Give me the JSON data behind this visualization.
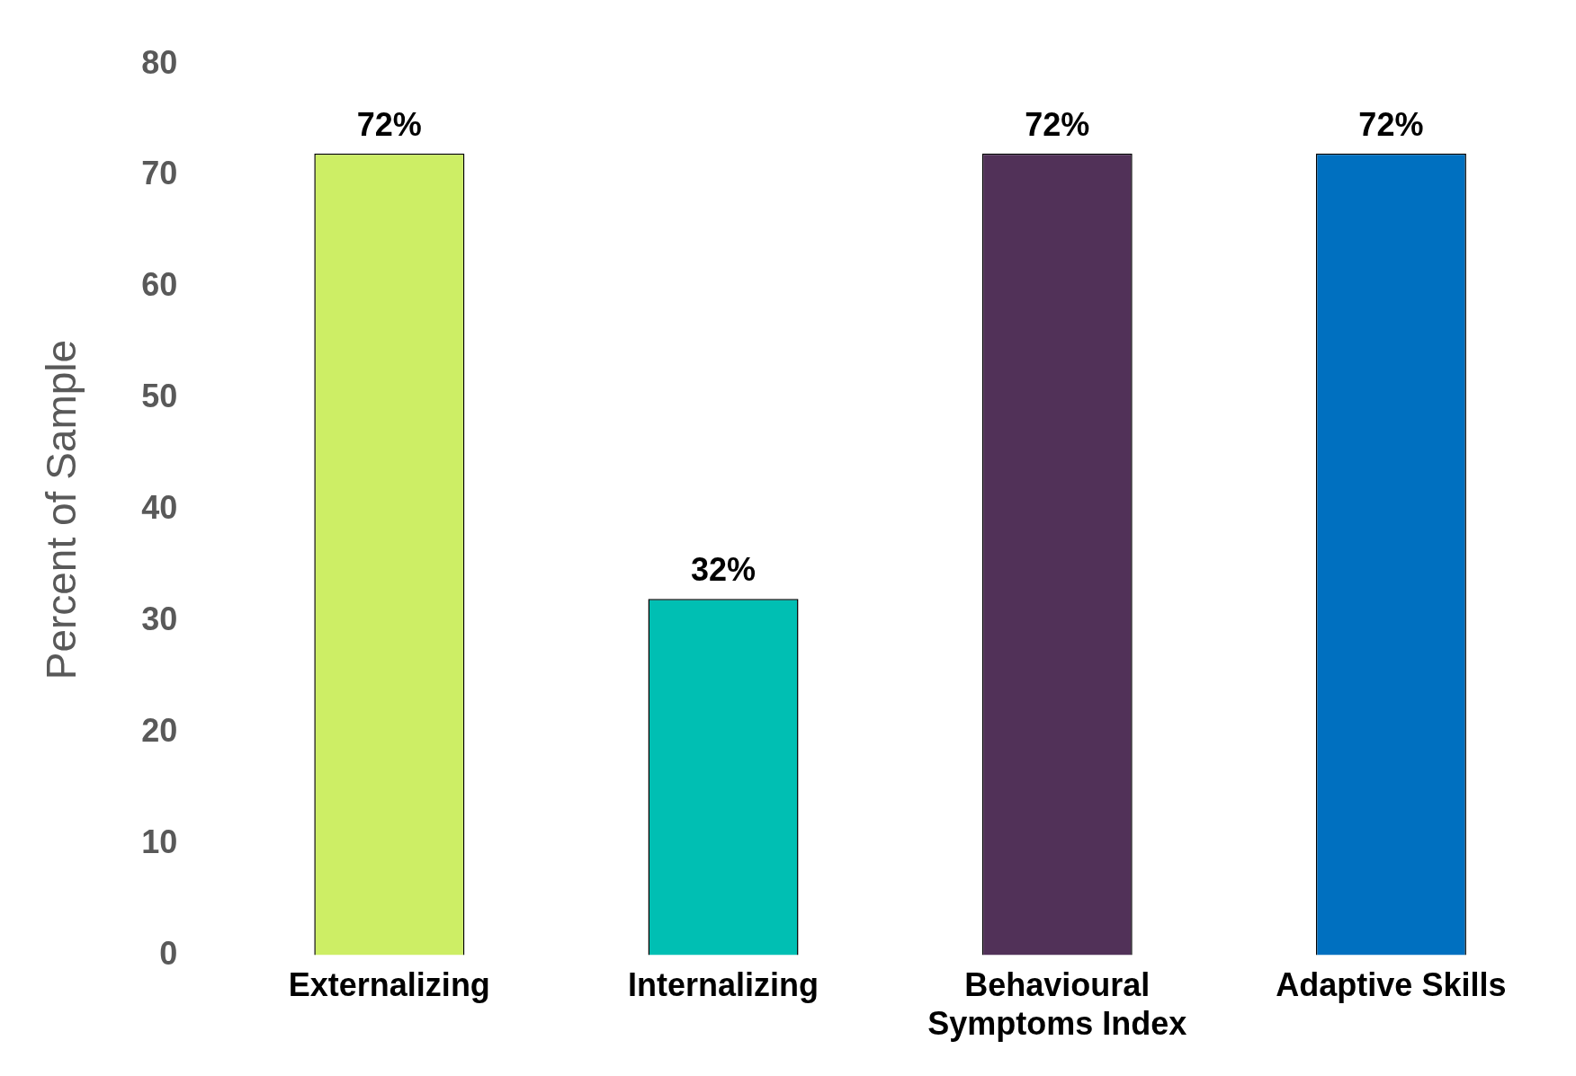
{
  "chart_data": {
    "type": "bar",
    "ylabel": "Percent of Sample",
    "categories": [
      "Externalizing",
      "Internalizing",
      "Behavioural Symptoms Index",
      "Adaptive Skills"
    ],
    "values": [
      72,
      32,
      72,
      72
    ],
    "colors": [
      "#cdee65",
      "#00bfb3",
      "#513158",
      "#0070c0"
    ],
    "value_labels": [
      "72%",
      "32%",
      "72%",
      "72%"
    ],
    "ylim": [
      0,
      80
    ],
    "yticks": [
      0,
      10,
      20,
      30,
      40,
      50,
      60,
      70,
      80
    ],
    "grid": false,
    "legend": false
  }
}
